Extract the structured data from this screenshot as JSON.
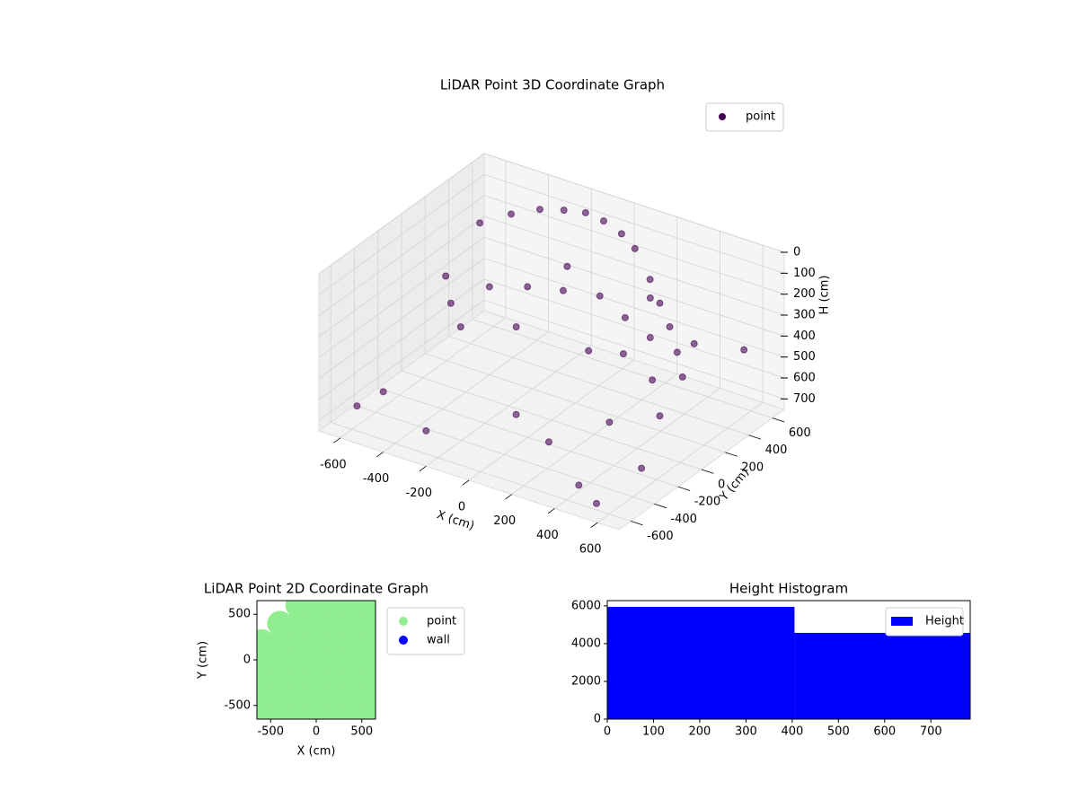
{
  "chart_data": [
    {
      "type": "scatter3d",
      "title": "LiDAR Point 3D Coordinate Graph",
      "xlabel": "X (cm)",
      "ylabel": "Y (cm)",
      "zlabel": "H (cm)",
      "xlim": [
        -700,
        700
      ],
      "ylim": [
        -700,
        700
      ],
      "zlim": [
        750,
        0
      ],
      "xticks": [
        -600,
        -400,
        -200,
        0,
        200,
        400,
        600
      ],
      "yticks": [
        -600,
        -400,
        -200,
        0,
        200,
        400,
        600
      ],
      "zticks": [
        0,
        100,
        200,
        300,
        400,
        500,
        600,
        700
      ],
      "grid": true,
      "legend": "upper right",
      "series": [
        {
          "name": "point",
          "color": "#440154",
          "x": [
            -500,
            -420,
            -330,
            -240,
            -150,
            -60,
            40,
            130,
            -560,
            -470,
            -380,
            250,
            340,
            430,
            520,
            600,
            -620,
            -660,
            0,
            180,
            380,
            560,
            -220,
            90,
            280,
            470,
            -310,
            430,
            540,
            640,
            -120,
            240,
            -400,
            -250,
            -100,
            60,
            200,
            350,
            500,
            650
          ],
          "y": [
            300,
            420,
            500,
            540,
            560,
            550,
            520,
            470,
            120,
            0,
            -80,
            380,
            300,
            220,
            120,
            20,
            -300,
            -450,
            -300,
            -350,
            -200,
            -100,
            100,
            150,
            100,
            0,
            -500,
            -550,
            -600,
            -400,
            350,
            400,
            200,
            250,
            280,
            300,
            260,
            200,
            300,
            450
          ],
          "z": [
            100,
            80,
            60,
            50,
            40,
            45,
            60,
            80,
            300,
            350,
            400,
            150,
            200,
            250,
            300,
            350,
            700,
            720,
            600,
            650,
            550,
            500,
            420,
            450,
            380,
            400,
            700,
            690,
            720,
            600,
            200,
            250,
            330,
            300,
            280,
            260,
            300,
            320,
            340,
            380
          ]
        }
      ]
    },
    {
      "type": "scatter",
      "title": "LiDAR Point 2D Coordinate Graph",
      "xlabel": "X (cm)",
      "ylabel": "Y (cm)",
      "xlim": [
        -650,
        650
      ],
      "ylim": [
        -650,
        650
      ],
      "xticks": [
        -500,
        0,
        500
      ],
      "yticks": [
        -500,
        0,
        500
      ],
      "legend": "outside right",
      "series": [
        {
          "name": "point",
          "color": "#90ee90",
          "x": [
            -200,
            0,
            200,
            400,
            600,
            -400,
            -200,
            0,
            200,
            400,
            600,
            -600,
            -400,
            -200,
            0,
            200,
            400,
            600,
            -600,
            -400,
            -200,
            0,
            200,
            400,
            600,
            -600,
            -400,
            -200,
            0,
            200,
            400,
            600,
            -600,
            -400,
            -200,
            0,
            200,
            400,
            600,
            -600,
            -400,
            -200,
            0,
            200,
            400,
            600
          ],
          "y": [
            600,
            600,
            600,
            600,
            600,
            400,
            400,
            400,
            400,
            400,
            400,
            200,
            200,
            200,
            200,
            200,
            200,
            200,
            0,
            0,
            0,
            0,
            0,
            0,
            0,
            -200,
            -200,
            -200,
            -200,
            -200,
            -200,
            -200,
            -400,
            -400,
            -400,
            -400,
            -400,
            -400,
            -400,
            -600,
            -600,
            -600,
            -600,
            -600,
            -600,
            -600
          ]
        },
        {
          "name": "wall",
          "color": "#0000ff",
          "x": [],
          "y": []
        }
      ]
    },
    {
      "type": "histogram",
      "title": "Height Histogram",
      "bins": [
        0,
        405,
        785
      ],
      "counts": [
        5950,
        4570
      ],
      "name": "Height",
      "color": "#0000ff",
      "xlim": [
        0,
        785
      ],
      "ylim": [
        0,
        6280
      ],
      "xticks": [
        0,
        100,
        200,
        300,
        400,
        500,
        600,
        700
      ],
      "yticks": [
        0,
        2000,
        4000,
        6000
      ],
      "legend": "upper right"
    }
  ]
}
